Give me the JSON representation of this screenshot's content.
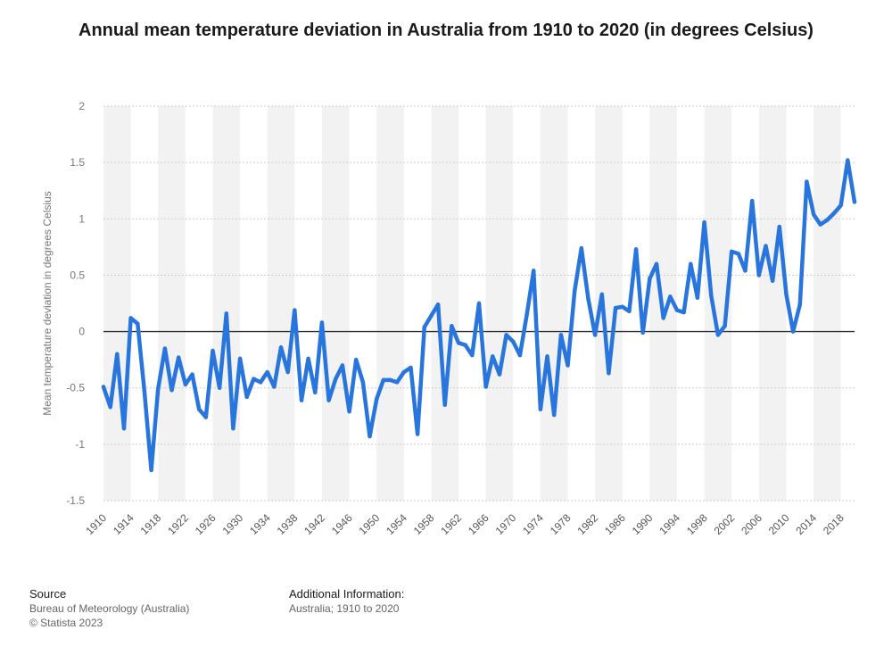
{
  "chart_data": {
    "type": "line",
    "title": "Annual mean temperature deviation in Australia from 1910 to 2020 (in degrees Celsius)",
    "xlabel": "",
    "ylabel": "Mean temperature deviation in degrees Celsius",
    "ylim": [
      -1.5,
      2
    ],
    "yticks": [
      2,
      1.5,
      1,
      0.5,
      0,
      -0.5,
      -1,
      -1.5
    ],
    "ytick_labels": [
      "2",
      "1.5",
      "1",
      "0.5",
      "0",
      "-0.5",
      "-1",
      "-1.5"
    ],
    "xlim": [
      1910,
      2020
    ],
    "xticks": [
      1910,
      1914,
      1918,
      1922,
      1926,
      1930,
      1934,
      1938,
      1942,
      1946,
      1950,
      1954,
      1958,
      1962,
      1966,
      1970,
      1974,
      1978,
      1982,
      1986,
      1990,
      1994,
      1998,
      2002,
      2006,
      2010,
      2014,
      2018
    ],
    "grid": true,
    "color": "#2876dd",
    "x": [
      1910,
      1911,
      1912,
      1913,
      1914,
      1915,
      1916,
      1917,
      1918,
      1919,
      1920,
      1921,
      1922,
      1923,
      1924,
      1925,
      1926,
      1927,
      1928,
      1929,
      1930,
      1931,
      1932,
      1933,
      1934,
      1935,
      1936,
      1937,
      1938,
      1939,
      1940,
      1941,
      1942,
      1943,
      1944,
      1945,
      1946,
      1947,
      1948,
      1949,
      1950,
      1951,
      1952,
      1953,
      1954,
      1955,
      1956,
      1957,
      1958,
      1959,
      1960,
      1961,
      1962,
      1963,
      1964,
      1965,
      1966,
      1967,
      1968,
      1969,
      1970,
      1971,
      1972,
      1973,
      1974,
      1975,
      1976,
      1977,
      1978,
      1979,
      1980,
      1981,
      1982,
      1983,
      1984,
      1985,
      1986,
      1987,
      1988,
      1989,
      1990,
      1991,
      1992,
      1993,
      1994,
      1995,
      1996,
      1997,
      1998,
      1999,
      2000,
      2001,
      2002,
      2003,
      2004,
      2005,
      2006,
      2007,
      2008,
      2009,
      2010,
      2011,
      2012,
      2013,
      2014,
      2015,
      2016,
      2017,
      2018,
      2019,
      2020
    ],
    "values": [
      -0.49,
      -0.67,
      -0.2,
      -0.86,
      0.12,
      0.07,
      -0.53,
      -1.23,
      -0.51,
      -0.15,
      -0.52,
      -0.23,
      -0.47,
      -0.38,
      -0.69,
      -0.76,
      -0.17,
      -0.5,
      0.16,
      -0.86,
      -0.24,
      -0.58,
      -0.42,
      -0.45,
      -0.36,
      -0.49,
      -0.14,
      -0.36,
      0.19,
      -0.61,
      -0.24,
      -0.54,
      0.08,
      -0.61,
      -0.42,
      -0.3,
      -0.71,
      -0.25,
      -0.45,
      -0.93,
      -0.6,
      -0.43,
      -0.43,
      -0.45,
      -0.36,
      -0.32,
      -0.91,
      0.04,
      0.14,
      0.24,
      -0.65,
      0.05,
      -0.1,
      -0.12,
      -0.21,
      0.25,
      -0.49,
      -0.22,
      -0.38,
      -0.03,
      -0.09,
      -0.21,
      0.15,
      0.54,
      -0.69,
      -0.22,
      -0.74,
      -0.03,
      -0.3,
      0.36,
      0.74,
      0.29,
      -0.03,
      0.33,
      -0.37,
      0.21,
      0.22,
      0.18,
      0.73,
      -0.01,
      0.47,
      0.6,
      0.12,
      0.31,
      0.19,
      0.17,
      0.6,
      0.3,
      0.97,
      0.32,
      -0.03,
      0.05,
      0.71,
      0.69,
      0.54,
      1.16,
      0.5,
      0.76,
      0.45,
      0.93,
      0.33,
      0.0,
      0.24,
      1.33,
      1.04,
      0.95,
      0.99,
      1.05,
      1.12,
      1.52,
      1.15
    ]
  },
  "footer": {
    "source_heading": "Source",
    "source_text": "Bureau of Meteorology (Australia)",
    "copyright": "© Statista 2023",
    "additional_heading": "Additional Information:",
    "additional_text": "Australia; 1910 to 2020"
  }
}
